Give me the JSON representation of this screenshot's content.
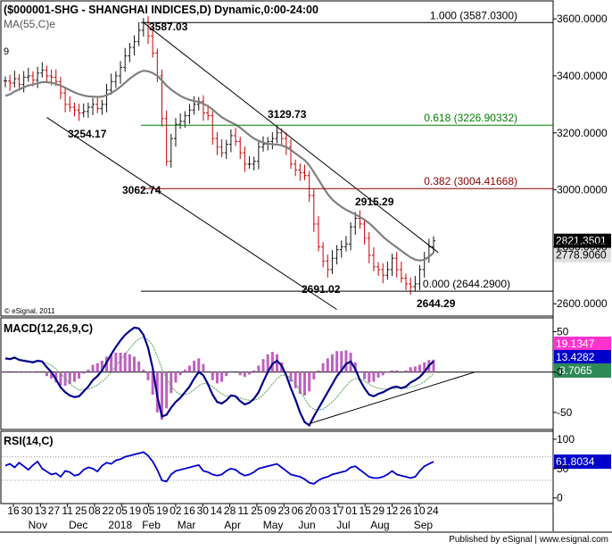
{
  "colors": {
    "background": "#ffffff",
    "frame": "#000000",
    "grid": "#c8c8c8",
    "price": "#000000",
    "bar_up": "#111111",
    "bar_down": "#cc0000",
    "ma": "#808080",
    "fib_100": "#000000",
    "fib_618": "#008000",
    "fib_382": "#8b0000",
    "fib_000": "#000000",
    "macd_line": "#00008b",
    "signal_line": "#5aa05a",
    "histogram": "#c060c0",
    "rsi_line": "#0000cd",
    "price_tag_bg": "#000000",
    "price_tag_fg": "#ffffff",
    "ma_tag_bg": "#e0e0e0",
    "macd_tag_bg": "#0000cd",
    "signal_tag_bg": "#2e8b57",
    "hist_tag_bg": "#ff33cc",
    "rsi_tag_bg": "#0000cd"
  },
  "header": {
    "title": "($000001-SHG - SHANGHAI INDICES,D) Dynamic,0:00-24:00",
    "ma_label": "MA(55,C)e",
    "stray_label": "9"
  },
  "copyright": "© eSignal, 2011",
  "footer": "Published by eSignal | www.esignal.com",
  "chart_data": [
    {
      "type": "line",
      "panel": "price",
      "ylim": [
        2560,
        3660
      ],
      "y_ticks": [
        "3600.0000",
        "3400.0000",
        "3200.0000",
        "3000.0000",
        "2800.0000",
        "2600.0000"
      ],
      "y_tick_values": [
        3600,
        3400,
        3200,
        3000,
        2800,
        2600
      ],
      "x_tick_labels": [
        "16",
        "30",
        "13",
        "27",
        "11",
        "25",
        "08",
        "22",
        "05",
        "19",
        "05",
        "19",
        "02",
        "16",
        "30",
        "14",
        "28",
        "11",
        "25",
        "09",
        "23",
        "06",
        "20",
        "03",
        "17",
        "01",
        "15",
        "29",
        "12",
        "26",
        "10",
        "24"
      ],
      "month_labels": [
        "Nov",
        "Dec",
        "2018",
        "Feb",
        "Mar",
        "Apr",
        "May",
        "Jun",
        "Jul",
        "Aug",
        "Sep"
      ],
      "series": [
        {
          "name": "Close",
          "values": [
            3382,
            3375,
            3390,
            3370,
            3395,
            3400,
            3385,
            3410,
            3420,
            3400,
            3395,
            3380,
            3340,
            3300,
            3290,
            3280,
            3270,
            3275,
            3290,
            3300,
            3285,
            3300,
            3350,
            3380,
            3400,
            3430,
            3470,
            3500,
            3520,
            3560,
            3587,
            3540,
            3480,
            3400,
            3250,
            3100,
            3180,
            3230,
            3240,
            3260,
            3280,
            3300,
            3310,
            3270,
            3260,
            3180,
            3150,
            3130,
            3160,
            3190,
            3170,
            3130,
            3090,
            3090,
            3100,
            3150,
            3160,
            3170,
            3180,
            3200,
            3180,
            3150,
            3090,
            3070,
            3060,
            3050,
            2980,
            2880,
            2800,
            2750,
            2720,
            2760,
            2790,
            2800,
            2810,
            2870,
            2900,
            2880,
            2830,
            2770,
            2730,
            2720,
            2700,
            2720,
            2760,
            2720,
            2690,
            2670,
            2660,
            2670,
            2720,
            2760,
            2800,
            2821
          ]
        },
        {
          "name": "MA(55,C)e",
          "values": [
            3330,
            3335,
            3345,
            3352,
            3360,
            3366,
            3370,
            3374,
            3378,
            3378,
            3376,
            3372,
            3366,
            3358,
            3350,
            3342,
            3336,
            3331,
            3328,
            3327,
            3326,
            3327,
            3332,
            3340,
            3350,
            3362,
            3376,
            3390,
            3402,
            3412,
            3418,
            3416,
            3410,
            3400,
            3384,
            3366,
            3352,
            3340,
            3330,
            3322,
            3316,
            3312,
            3308,
            3302,
            3294,
            3282,
            3268,
            3255,
            3245,
            3237,
            3229,
            3218,
            3205,
            3192,
            3180,
            3172,
            3166,
            3162,
            3160,
            3159,
            3156,
            3150,
            3140,
            3128,
            3116,
            3104,
            3086,
            3062,
            3036,
            3010,
            2985,
            2966,
            2952,
            2940,
            2930,
            2922,
            2914,
            2905,
            2895,
            2883,
            2868,
            2852,
            2836,
            2822,
            2810,
            2798,
            2786,
            2774,
            2763,
            2755,
            2752,
            2755,
            2765,
            2778.906
          ]
        }
      ],
      "annotations": {
        "swing_high": "3587.03",
        "swing_labels": [
          "3254.17",
          "3062.74",
          "3129.73",
          "2915.29",
          "2691.02",
          "2644.29"
        ],
        "fib_levels": [
          {
            "label": "1.000 (3587.0300)",
            "value": 3587.03
          },
          {
            "label": "0.618 (3226.90332)",
            "value": 3226.90332
          },
          {
            "label": "0.382 (3004.41668)",
            "value": 3004.41668
          },
          {
            "label": "0.000 (2644.2900)",
            "value": 2644.29
          }
        ],
        "price_tag": "2821.3501",
        "ma_tag": "2778.9060"
      },
      "channel": {
        "upper": {
          "from": [
            30,
            3587
          ],
          "to": [
            94,
            2780
          ]
        },
        "lower": {
          "from": [
            9,
            3254
          ],
          "to": [
            72,
            2580
          ]
        }
      }
    },
    {
      "type": "line",
      "panel": "macd",
      "title": "MACD(12,26,9,C)",
      "ylim": [
        -70,
        66
      ],
      "y_ticks": [
        "50",
        "0",
        "-50"
      ],
      "y_tick_values": [
        50,
        0,
        -50
      ],
      "series": [
        {
          "name": "MACD",
          "values": [
            17,
            16,
            18,
            15,
            14,
            13,
            12,
            14,
            13,
            6,
            0,
            -9,
            -19,
            -25,
            -29,
            -31,
            -30,
            -24,
            -18,
            -10,
            -5,
            2,
            12,
            22,
            31,
            39,
            46,
            51,
            55,
            54,
            46,
            30,
            5,
            -30,
            -55,
            -53,
            -44,
            -37,
            -32,
            -25,
            -18,
            -8,
            0,
            -4,
            -15,
            -28,
            -37,
            -39,
            -35,
            -29,
            -30,
            -36,
            -40,
            -38,
            -33,
            -25,
            -12,
            0,
            10,
            14,
            8,
            -4,
            -20,
            -34,
            -50,
            -62,
            -66,
            -55,
            -45,
            -35,
            -25,
            -15,
            -5,
            2,
            10,
            13,
            4,
            -10,
            -20,
            -28,
            -30,
            -27,
            -25,
            -22,
            -19,
            -18,
            -20,
            -18,
            -13,
            -10,
            -6,
            0,
            8,
            13.4282
          ]
        },
        {
          "name": "Signal",
          "values": [
            16,
            16,
            17,
            16,
            15,
            14,
            13,
            13,
            13,
            11,
            8,
            4,
            -2,
            -8,
            -14,
            -19,
            -22,
            -22,
            -21,
            -19,
            -16,
            -12,
            -7,
            0,
            7,
            15,
            22,
            29,
            36,
            41,
            43,
            40,
            33,
            20,
            4,
            -8,
            -18,
            -24,
            -28,
            -28,
            -26,
            -22,
            -17,
            -14,
            -15,
            -18,
            -23,
            -27,
            -30,
            -30,
            -30,
            -32,
            -34,
            -35,
            -35,
            -33,
            -28,
            -22,
            -15,
            -8,
            -4,
            -4,
            -8,
            -14,
            -23,
            -33,
            -42,
            -46,
            -47,
            -46,
            -42,
            -37,
            -31,
            -24,
            -17,
            -11,
            -8,
            -9,
            -11,
            -15,
            -18,
            -20,
            -21,
            -21,
            -21,
            -20,
            -20,
            -20,
            -19,
            -17,
            -15,
            -12,
            -7,
            -2
          ]
        },
        {
          "name": "Histogram",
          "values": [
            1,
            0,
            1,
            -1,
            -1,
            -1,
            -1,
            1,
            0,
            -5,
            -8,
            -13,
            -17,
            -17,
            -15,
            -12,
            -8,
            -2,
            3,
            9,
            11,
            14,
            19,
            22,
            24,
            24,
            24,
            22,
            19,
            13,
            3,
            -10,
            -28,
            -50,
            -59,
            -45,
            -26,
            -13,
            -4,
            3,
            8,
            14,
            17,
            10,
            0,
            -10,
            -14,
            -12,
            -5,
            1,
            0,
            -4,
            -6,
            -3,
            2,
            8,
            16,
            22,
            25,
            22,
            12,
            0,
            -12,
            -20,
            -27,
            -29,
            -24,
            -9,
            2,
            11,
            17,
            22,
            26,
            26,
            27,
            24,
            12,
            -1,
            -9,
            -13,
            -12,
            -7,
            -4,
            -1,
            2,
            2,
            0,
            2,
            6,
            7,
            9,
            12,
            15,
            15.4
          ]
        }
      ],
      "tags": [
        "19.1347",
        "13.4282",
        "-8.7065"
      ],
      "trendline": {
        "from": [
          66,
          -64
        ],
        "to": [
          102,
          0
        ]
      }
    },
    {
      "type": "line",
      "panel": "rsi",
      "title": "RSI(14,C)",
      "ylim": [
        -8,
        112
      ],
      "y_ticks": [
        "100",
        "50",
        "0"
      ],
      "y_tick_values": [
        100,
        50,
        0
      ],
      "reference_lines": [
        70,
        30
      ],
      "series": [
        {
          "name": "RSI",
          "values": [
            55,
            58,
            52,
            60,
            54,
            48,
            56,
            62,
            50,
            45,
            40,
            42,
            36,
            46,
            44,
            38,
            40,
            48,
            52,
            50,
            45,
            55,
            60,
            58,
            64,
            66,
            70,
            72,
            74,
            76,
            78,
            72,
            62,
            48,
            30,
            28,
            40,
            46,
            48,
            50,
            52,
            54,
            56,
            46,
            44,
            40,
            38,
            40,
            46,
            50,
            48,
            42,
            38,
            40,
            44,
            50,
            52,
            54,
            56,
            58,
            52,
            46,
            40,
            38,
            36,
            32,
            26,
            24,
            30,
            34,
            36,
            40,
            42,
            44,
            46,
            52,
            54,
            48,
            42,
            36,
            34,
            34,
            36,
            40,
            46,
            40,
            38,
            36,
            34,
            36,
            46,
            54,
            58,
            61.8034
          ]
        }
      ],
      "tag": "61.8034"
    }
  ]
}
